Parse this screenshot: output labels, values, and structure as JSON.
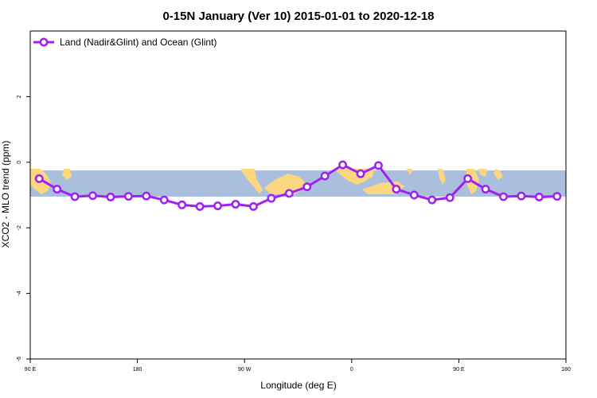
{
  "chart_data": {
    "type": "line",
    "title": "0-15N January (Ver 10)   2015-01-01 to 2020-12-18",
    "xlabel": "Longitude (deg E)",
    "ylabel": "XCO2 - MLO trend (ppm)",
    "xlim": [
      90,
      540
    ],
    "ylim": [
      -6,
      4
    ],
    "grid": false,
    "legend_position": "top-left",
    "x_ticks": [
      {
        "value": 90,
        "label": "90 E"
      },
      {
        "value": 180,
        "label": "180"
      },
      {
        "value": 270,
        "label": "90 W"
      },
      {
        "value": 360,
        "label": "0"
      },
      {
        "value": 450,
        "label": "90 E"
      },
      {
        "value": 540,
        "label": "180"
      }
    ],
    "y_ticks": [
      {
        "value": -6,
        "label": "-6"
      },
      {
        "value": -4,
        "label": "-4"
      },
      {
        "value": -2,
        "label": "-2"
      },
      {
        "value": 0,
        "label": "0"
      },
      {
        "value": 2,
        "label": "2"
      }
    ],
    "series": [
      {
        "name": "Land (Nadir&Glint) and Ocean (Glint)",
        "color": "#a020f0",
        "x": [
          97.5,
          112.5,
          127.5,
          142.5,
          157.5,
          172.5,
          187.5,
          202.5,
          217.5,
          232.5,
          247.5,
          262.5,
          277.5,
          292.5,
          307.5,
          322.5,
          337.5,
          352.5,
          367.5,
          382.5,
          397.5,
          412.5,
          427.5,
          442.5,
          457.5,
          472.5,
          487.5,
          502.5,
          517.5,
          532.5
        ],
        "y": [
          -0.5,
          -0.82,
          -1.05,
          -1.02,
          -1.06,
          -1.04,
          -1.03,
          -1.15,
          -1.3,
          -1.35,
          -1.33,
          -1.28,
          -1.35,
          -1.1,
          -0.95,
          -0.75,
          -0.42,
          -0.08,
          -0.35,
          -0.1,
          -0.82,
          -1.0,
          -1.15,
          -1.08,
          -0.5,
          -0.82,
          -1.05,
          -1.03,
          -1.06,
          -1.04
        ]
      }
    ],
    "background_map": {
      "description_color_ocean": "#a9bfdd",
      "description_color_land": "#fcd77f",
      "lat_range_ppm": [
        -1.05,
        -0.25
      ]
    }
  }
}
